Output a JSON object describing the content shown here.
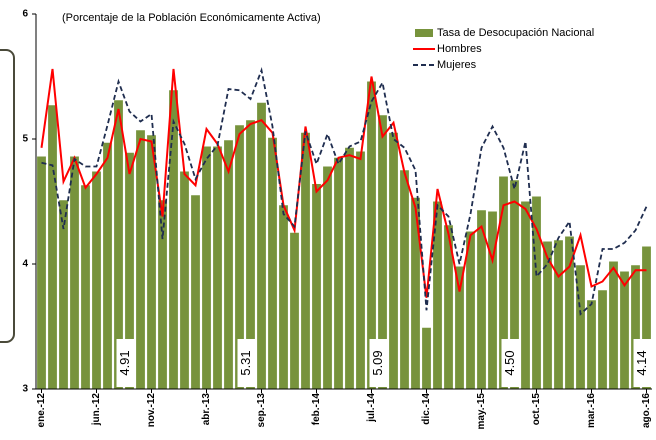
{
  "chart_data": {
    "type": "bar-line",
    "subtitle": "(Porcentaje de la Población Económicamente Activa)",
    "categories": [
      "ene.-12",
      null,
      null,
      null,
      null,
      "jun.-12",
      null,
      null,
      null,
      null,
      "nov.-12",
      null,
      null,
      null,
      null,
      "abr.-13",
      null,
      null,
      null,
      null,
      "sep.-13",
      null,
      null,
      null,
      null,
      "feb.-14",
      null,
      null,
      null,
      null,
      "jul.-14",
      null,
      null,
      null,
      null,
      "dic.-14",
      null,
      null,
      null,
      null,
      "may.-15",
      null,
      null,
      null,
      null,
      "oct.-15",
      null,
      null,
      null,
      null,
      "mar.-16",
      null,
      null,
      null,
      null,
      "ago.-16"
    ],
    "ylim": [
      3,
      6
    ],
    "yticks": [
      3,
      4,
      5,
      6
    ],
    "series": [
      {
        "name": "Tasa de Desocupación Nacional",
        "kind": "bar",
        "color": "#77933c",
        "values": [
          4.86,
          5.27,
          4.51,
          4.86,
          4.63,
          4.74,
          4.97,
          5.31,
          4.89,
          5.07,
          5.03,
          4.51,
          5.39,
          4.74,
          4.55,
          4.94,
          4.94,
          4.99,
          5.11,
          5.15,
          5.29,
          5.01,
          4.47,
          4.25,
          5.05,
          4.64,
          4.78,
          4.85,
          4.93,
          4.9,
          5.46,
          5.19,
          5.05,
          4.75,
          4.53,
          3.49,
          4.5,
          4.31,
          3.98,
          4.26,
          4.43,
          4.42,
          4.7,
          4.67,
          4.5,
          4.54,
          4.18,
          4.19,
          4.22,
          3.99,
          3.71,
          3.79,
          4.02,
          3.94,
          3.99,
          4.14
        ]
      },
      {
        "name": "Hombres",
        "kind": "line",
        "color": "#ff0000",
        "values": [
          4.93,
          5.56,
          4.66,
          4.85,
          4.61,
          4.72,
          4.85,
          5.24,
          4.72,
          5.0,
          4.98,
          4.38,
          5.56,
          4.72,
          4.63,
          5.08,
          4.96,
          4.74,
          5.04,
          5.12,
          5.15,
          5.05,
          4.47,
          4.27,
          5.1,
          4.58,
          4.67,
          4.85,
          4.87,
          4.84,
          5.5,
          5.02,
          5.13,
          4.73,
          4.45,
          3.73,
          4.6,
          4.24,
          3.78,
          4.23,
          4.3,
          4.03,
          4.47,
          4.5,
          4.44,
          4.28,
          4.05,
          3.9,
          3.98,
          4.23,
          3.82,
          3.86,
          3.97,
          3.83,
          3.95,
          3.95
        ]
      },
      {
        "name": "Mujeres",
        "kind": "dashed",
        "color": "#1f2d4f",
        "values": [
          4.81,
          4.79,
          4.28,
          4.84,
          4.78,
          4.78,
          5.11,
          5.46,
          5.22,
          5.14,
          5.2,
          4.2,
          5.14,
          4.96,
          4.68,
          4.84,
          4.95,
          5.4,
          5.39,
          5.32,
          5.55,
          5.1,
          4.4,
          4.3,
          5.06,
          4.8,
          5.04,
          4.8,
          4.94,
          4.98,
          5.3,
          5.45,
          5.0,
          4.93,
          4.75,
          3.63,
          4.47,
          4.38,
          4.0,
          4.4,
          4.93,
          5.1,
          4.93,
          4.6,
          4.98,
          3.9,
          4.0,
          4.21,
          4.34,
          3.6,
          3.68,
          4.12,
          4.12,
          4.17,
          4.27,
          4.46
        ]
      }
    ],
    "annotations": [
      "4.91",
      "5.31",
      "5.09",
      "4.50",
      "4.14"
    ]
  }
}
